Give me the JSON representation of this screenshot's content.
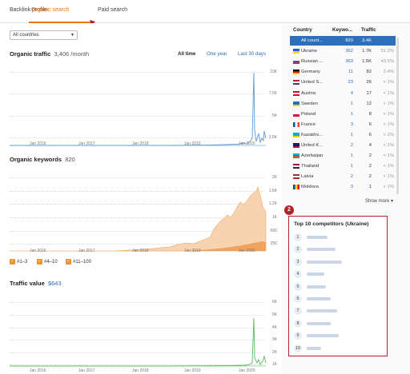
{
  "tabs": [
    "Backlink profile",
    "Organic search",
    "Paid search"
  ],
  "country_select": "All countries",
  "organic_traffic": {
    "title": "Organic traffic",
    "value": "3,406 /month",
    "ranges": [
      "All time",
      "One year",
      "Last 30 days"
    ],
    "y_ticks": [
      "10K",
      "7.5K",
      "5K",
      "2.5K"
    ],
    "x_ticks": [
      "Jan 2016",
      "Jan 2017",
      "Jan 2018",
      "Jan 2019",
      "Jan 2020"
    ]
  },
  "organic_keywords": {
    "title": "Organic keywords",
    "value": "820",
    "y_ticks": [
      "2K",
      "1.5K",
      "1.2K",
      "1K",
      "500",
      "250"
    ],
    "x_ticks": [
      "Jan 2016",
      "Jan 2017",
      "Jan 2018",
      "Jan 2019",
      "Jan 2020"
    ],
    "legend": [
      "#1–3",
      "#4–10",
      "#11–100"
    ]
  },
  "traffic_value": {
    "title": "Traffic value",
    "value": "$643",
    "y_ticks": [
      "6K",
      "5K",
      "4K",
      "3K",
      "2K",
      "1K"
    ],
    "x_ticks": [
      "Jan 2016",
      "Jan 2017",
      "Jan 2018",
      "Jan 2019",
      "Jan 2020"
    ]
  },
  "country_table": {
    "headers": [
      "Country",
      "Keywo...",
      "Traffic"
    ],
    "rows": [
      {
        "name": "All count...",
        "kw": "820",
        "traffic": "3.4K",
        "pct": "",
        "flag": "none"
      },
      {
        "name": "Ukraine",
        "kw": "362",
        "traffic": "1.7K",
        "pct": "51.2%",
        "flag": "ua"
      },
      {
        "name": "Russian ...",
        "kw": "363",
        "traffic": "1.5K",
        "pct": "43.5%",
        "flag": "ru"
      },
      {
        "name": "Germany",
        "kw": "11",
        "traffic": "82",
        "pct": "2.4%",
        "flag": "de"
      },
      {
        "name": "United S...",
        "kw": "23",
        "traffic": "26",
        "pct": "< 1%",
        "flag": "us"
      },
      {
        "name": "Austria",
        "kw": "4",
        "traffic": "17",
        "pct": "< 1%",
        "flag": "at"
      },
      {
        "name": "Sweden",
        "kw": "1",
        "traffic": "12",
        "pct": "< 1%",
        "flag": "se"
      },
      {
        "name": "Poland",
        "kw": "1",
        "traffic": "8",
        "pct": "< 1%",
        "flag": "pl"
      },
      {
        "name": "France",
        "kw": "3",
        "traffic": "6",
        "pct": "< 1%",
        "flag": "fr"
      },
      {
        "name": "Kazakhs...",
        "kw": "1",
        "traffic": "6",
        "pct": "< 1%",
        "flag": "kz"
      },
      {
        "name": "United K...",
        "kw": "2",
        "traffic": "4",
        "pct": "< 1%",
        "flag": "gb"
      },
      {
        "name": "Azerbaijan",
        "kw": "1",
        "traffic": "2",
        "pct": "< 1%",
        "flag": "az"
      },
      {
        "name": "Thailand",
        "kw": "1",
        "traffic": "2",
        "pct": "< 1%",
        "flag": "th"
      },
      {
        "name": "Latvia",
        "kw": "2",
        "traffic": "2",
        "pct": "< 1%",
        "flag": "lv"
      },
      {
        "name": "Moldova",
        "kw": "3",
        "traffic": "1",
        "pct": "< 1%",
        "flag": "md"
      }
    ],
    "show_more": "Show more ▾"
  },
  "competitors": {
    "title": "Top 10 competitors (Ukraine)",
    "numbers": [
      "1",
      "2",
      "3",
      "4",
      "5",
      "6",
      "7",
      "8",
      "9",
      "10"
    ]
  },
  "annotations": [
    "1",
    "2"
  ],
  "colors": {
    "accent": "#e8761c",
    "traffic_line": "#5b9bd5",
    "keywords_fill": "#f7d3b0",
    "keywords_dark": "#ee9a4d",
    "value_line": "#5cb85c",
    "selected_row": "#2c6fbb",
    "annotation": "#b22229"
  }
}
